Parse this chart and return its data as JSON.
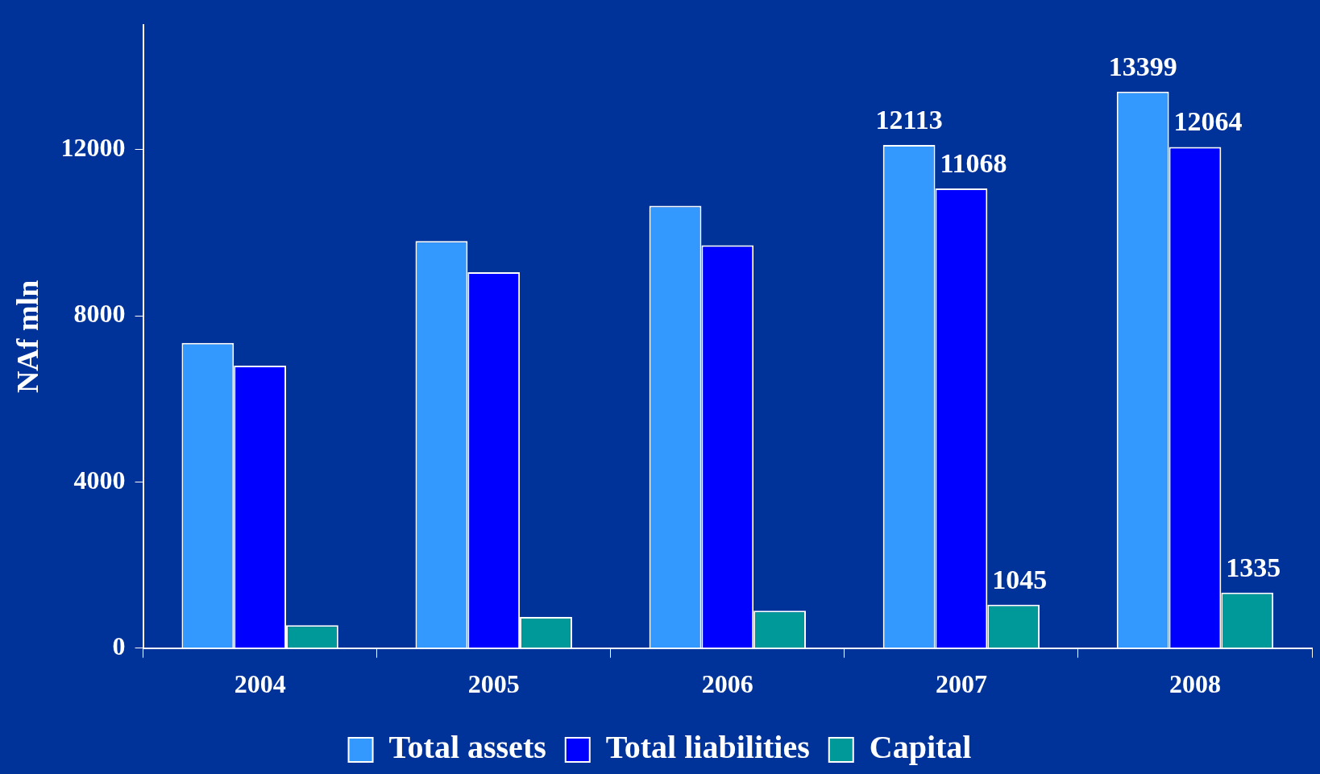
{
  "chart_data": {
    "type": "bar",
    "ylabel": "NAf mln",
    "categories": [
      "2004",
      "2005",
      "2006",
      "2007",
      "2008"
    ],
    "series": [
      {
        "name": "Total assets",
        "color": "#3399ff",
        "values": [
          7350,
          9800,
          10650,
          12113,
          13399
        ],
        "value_labels": [
          null,
          null,
          null,
          "12113",
          "13399"
        ]
      },
      {
        "name": "Total liabilities",
        "color": "#0000ff",
        "values": [
          6800,
          9050,
          9700,
          11068,
          12064
        ],
        "value_labels": [
          null,
          null,
          null,
          "11068",
          "12064"
        ]
      },
      {
        "name": "Capital",
        "color": "#009999",
        "values": [
          550,
          750,
          900,
          1045,
          1335
        ],
        "value_labels": [
          null,
          null,
          null,
          "1045",
          "1335"
        ]
      }
    ],
    "ylim": [
      0,
      15000
    ],
    "yticks": [
      0,
      4000,
      8000,
      12000
    ],
    "grid": false,
    "legend": "bottom"
  }
}
